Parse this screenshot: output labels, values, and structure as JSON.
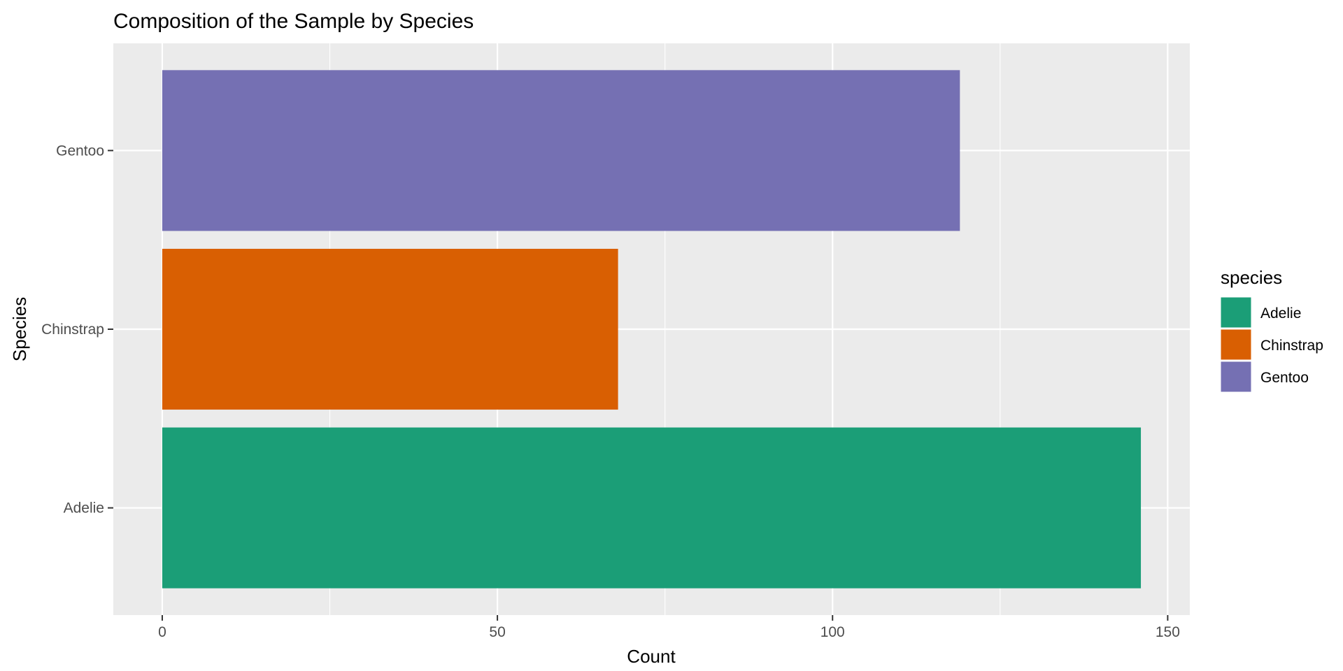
{
  "chart_data": {
    "type": "bar",
    "orientation": "horizontal",
    "title": "Composition of the Sample by Species",
    "xlabel": "Count",
    "ylabel": "Species",
    "categories": [
      "Adelie",
      "Chinstrap",
      "Gentoo"
    ],
    "values": [
      146,
      68,
      119
    ],
    "colors": [
      "#1b9e77",
      "#d95f02",
      "#7570b3"
    ],
    "xlim": [
      -7.3,
      153.3
    ],
    "xticks": [
      0,
      50,
      100,
      150
    ],
    "xtick_labels": [
      "0",
      "50",
      "100",
      "150"
    ],
    "grid": true,
    "panel_background": "#ebebeb",
    "legend": {
      "title": "species",
      "position": "right",
      "entries": [
        {
          "label": "Adelie",
          "color": "#1b9e77"
        },
        {
          "label": "Chinstrap",
          "color": "#d95f02"
        },
        {
          "label": "Gentoo",
          "color": "#7570b3"
        }
      ]
    }
  }
}
